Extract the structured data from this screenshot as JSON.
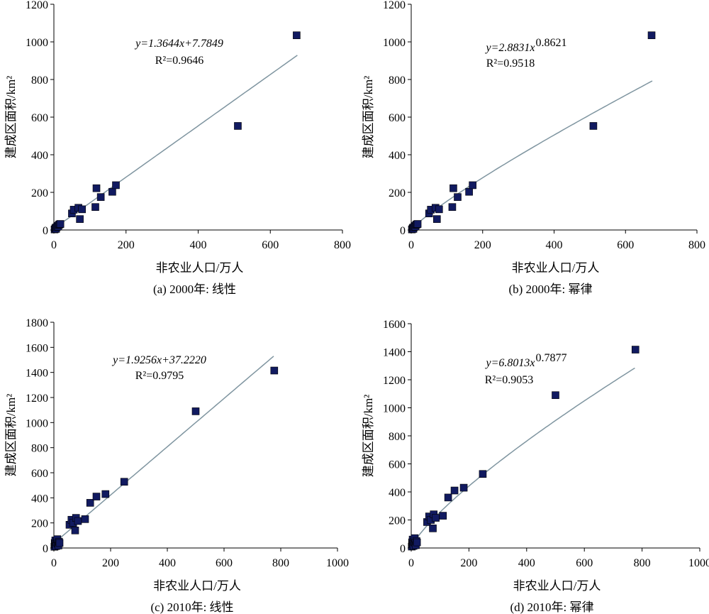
{
  "chart_data": [
    {
      "type": "scatter",
      "caption": "(a) 2000年: 线性",
      "xlabel": "非农业人口/万人",
      "ylabel": "建成区面积/km²",
      "xlim": [
        0,
        800
      ],
      "ylim": [
        0,
        1200
      ],
      "xticks": [
        "0",
        "200",
        "400",
        "600",
        "800"
      ],
      "yticks": [
        "0",
        "200",
        "400",
        "600",
        "800",
        "1000",
        "1200"
      ],
      "grid": false,
      "equation": "y=1.3644x+7.7849",
      "r2": "R²=0.9646",
      "fit": {
        "kind": "linear",
        "a": 1.3644,
        "b": 7.7849,
        "x_range": [
          0,
          675
        ]
      },
      "points": [
        [
          2,
          3
        ],
        [
          4,
          8
        ],
        [
          5,
          12
        ],
        [
          6,
          6
        ],
        [
          8,
          15
        ],
        [
          10,
          22
        ],
        [
          12,
          18
        ],
        [
          14,
          28
        ],
        [
          16,
          30
        ],
        [
          18,
          32
        ],
        [
          50,
          88
        ],
        [
          55,
          108
        ],
        [
          68,
          118
        ],
        [
          72,
          58
        ],
        [
          78,
          110
        ],
        [
          115,
          122
        ],
        [
          118,
          222
        ],
        [
          130,
          175
        ],
        [
          162,
          203
        ],
        [
          172,
          238
        ],
        [
          510,
          553
        ],
        [
          673,
          1035
        ]
      ]
    },
    {
      "type": "scatter",
      "caption": "(b) 2000年: 幂律",
      "xlabel": "非农业人口/万人",
      "ylabel": "建成区面积/km²",
      "xlim": [
        0,
        800
      ],
      "ylim": [
        0,
        1200
      ],
      "xticks": [
        "0",
        "200",
        "400",
        "600",
        "800"
      ],
      "yticks": [
        "0",
        "200",
        "400",
        "600",
        "800",
        "1000",
        "1200"
      ],
      "grid": false,
      "equation": "y=2.8831x",
      "exponent": "0.8621",
      "r2": "R²=0.9518",
      "fit": {
        "kind": "power",
        "a": 2.8831,
        "b": 0.8621,
        "x_range": [
          1,
          675
        ]
      },
      "points": [
        [
          2,
          3
        ],
        [
          4,
          8
        ],
        [
          5,
          12
        ],
        [
          6,
          6
        ],
        [
          8,
          15
        ],
        [
          10,
          22
        ],
        [
          12,
          18
        ],
        [
          14,
          28
        ],
        [
          16,
          30
        ],
        [
          18,
          32
        ],
        [
          50,
          88
        ],
        [
          55,
          108
        ],
        [
          68,
          118
        ],
        [
          72,
          58
        ],
        [
          78,
          110
        ],
        [
          115,
          122
        ],
        [
          118,
          222
        ],
        [
          130,
          175
        ],
        [
          162,
          203
        ],
        [
          172,
          238
        ],
        [
          510,
          553
        ],
        [
          673,
          1035
        ]
      ]
    },
    {
      "type": "scatter",
      "caption": "(c) 2010年: 线性",
      "xlabel": "非农业人口/万人",
      "ylabel": "建成区面积/km²",
      "xlim": [
        0,
        1000
      ],
      "ylim": [
        0,
        1800
      ],
      "xticks": [
        "0",
        "200",
        "400",
        "600",
        "800",
        "1000"
      ],
      "yticks": [
        "0",
        "200",
        "400",
        "600",
        "800",
        "1000",
        "1200",
        "1400",
        "1600",
        "1800"
      ],
      "grid": false,
      "equation": "y=1.9256x+37.2220",
      "r2": "R²=0.9795",
      "fit": {
        "kind": "linear",
        "a": 1.9256,
        "b": 37.222,
        "x_range": [
          0,
          775
        ]
      },
      "points": [
        [
          2,
          10
        ],
        [
          3,
          40
        ],
        [
          4,
          25
        ],
        [
          5,
          60
        ],
        [
          6,
          30
        ],
        [
          8,
          15
        ],
        [
          10,
          45
        ],
        [
          12,
          70
        ],
        [
          14,
          35
        ],
        [
          16,
          20
        ],
        [
          18,
          50
        ],
        [
          20,
          40
        ],
        [
          55,
          185
        ],
        [
          62,
          225
        ],
        [
          68,
          200
        ],
        [
          75,
          140
        ],
        [
          78,
          240
        ],
        [
          85,
          215
        ],
        [
          110,
          230
        ],
        [
          128,
          360
        ],
        [
          150,
          410
        ],
        [
          182,
          430
        ],
        [
          248,
          528
        ],
        [
          500,
          1090
        ],
        [
          777,
          1415
        ]
      ]
    },
    {
      "type": "scatter",
      "caption": "(d) 2010年: 幂律",
      "xlabel": "非农业人口/万人",
      "ylabel": "建成区面积/km²",
      "xlim": [
        0,
        1000
      ],
      "ylim": [
        0,
        1600
      ],
      "xticks": [
        "0",
        "200",
        "400",
        "600",
        "800",
        "1000"
      ],
      "yticks": [
        "0",
        "200",
        "400",
        "600",
        "800",
        "1000",
        "1200",
        "1400",
        "1600"
      ],
      "grid": false,
      "equation": "y=6.8013x",
      "exponent": "0.7877",
      "r2": "R²=0.9053",
      "fit": {
        "kind": "power",
        "a": 6.8013,
        "b": 0.7877,
        "x_range": [
          1,
          775
        ]
      },
      "points": [
        [
          2,
          10
        ],
        [
          3,
          40
        ],
        [
          4,
          25
        ],
        [
          5,
          60
        ],
        [
          6,
          30
        ],
        [
          8,
          15
        ],
        [
          10,
          45
        ],
        [
          12,
          70
        ],
        [
          14,
          35
        ],
        [
          16,
          20
        ],
        [
          18,
          50
        ],
        [
          20,
          40
        ],
        [
          55,
          185
        ],
        [
          62,
          225
        ],
        [
          68,
          200
        ],
        [
          75,
          140
        ],
        [
          78,
          240
        ],
        [
          85,
          215
        ],
        [
          110,
          230
        ],
        [
          128,
          360
        ],
        [
          150,
          410
        ],
        [
          182,
          430
        ],
        [
          248,
          528
        ],
        [
          500,
          1090
        ],
        [
          777,
          1415
        ]
      ]
    }
  ]
}
